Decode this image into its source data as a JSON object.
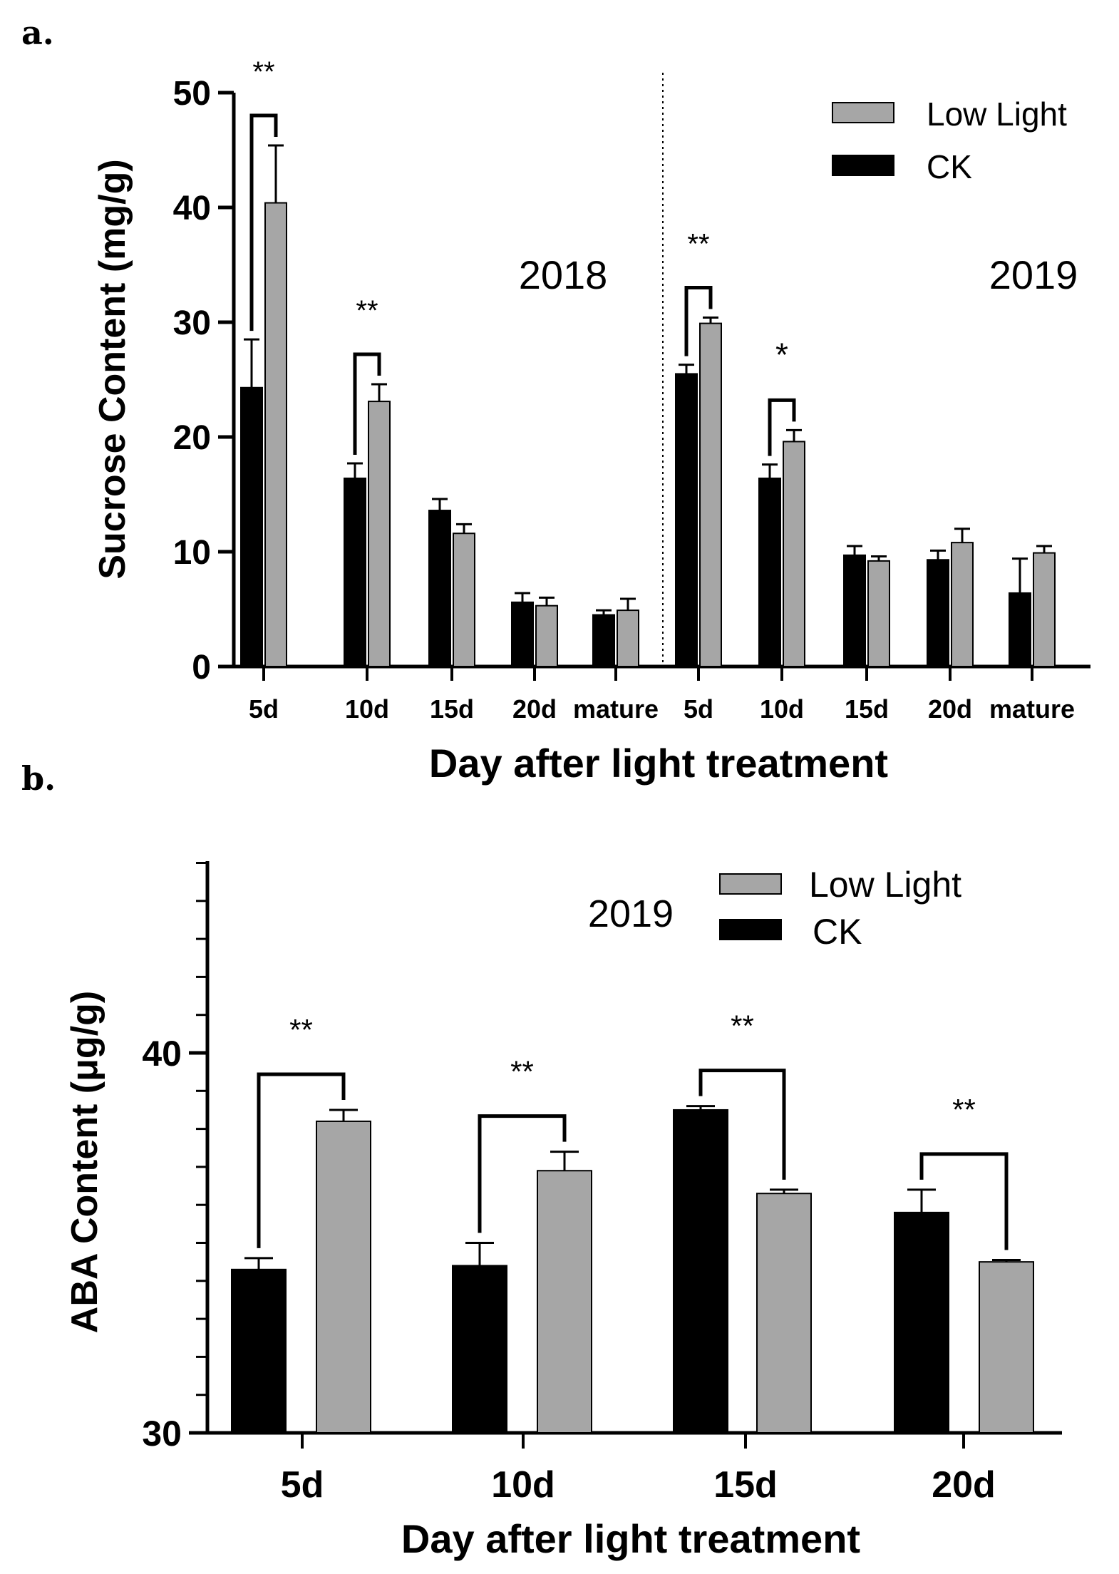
{
  "colors": {
    "ck": "#000000",
    "low_light": "#a6a6a6",
    "axis": "#000000"
  },
  "chart_data": [
    {
      "panel": "a.",
      "type": "bar",
      "ylabel": "Sucrose Content (mg/g)",
      "xlabel": "Day after light treatment",
      "ylim": [
        0,
        50
      ],
      "yticks": [
        0,
        10,
        20,
        30,
        40,
        50
      ],
      "categories": [
        "5d",
        "10d",
        "15d",
        "20d",
        "mature",
        "5d",
        "10d",
        "15d",
        "20d",
        "mature"
      ],
      "groups": [
        "2018",
        "2019"
      ],
      "series": [
        {
          "name": "CK",
          "values": [
            24.3,
            16.4,
            13.6,
            5.6,
            4.5,
            25.5,
            16.4,
            9.7,
            9.3,
            6.4
          ],
          "errors": [
            4.2,
            1.3,
            1.0,
            0.8,
            0.4,
            0.8,
            1.2,
            0.8,
            0.8,
            3.0
          ]
        },
        {
          "name": "Low Light",
          "values": [
            40.4,
            23.1,
            11.6,
            5.3,
            4.9,
            29.9,
            19.6,
            9.2,
            10.8,
            9.9
          ],
          "errors": [
            5.0,
            1.5,
            0.8,
            0.7,
            1.0,
            0.5,
            1.0,
            0.4,
            1.2,
            0.6
          ]
        }
      ],
      "legend": [
        "Low Light",
        "CK"
      ],
      "year_labels": [
        "2018",
        "2019"
      ],
      "significance": [
        {
          "category_index": 0,
          "label": "**"
        },
        {
          "category_index": 1,
          "label": "**"
        },
        {
          "category_index": 5,
          "label": "**"
        },
        {
          "category_index": 6,
          "label": "*"
        }
      ]
    },
    {
      "panel": "b.",
      "type": "bar",
      "ylabel": "ABA Content (μg/g)",
      "xlabel": "Day after light treatment",
      "ylim": [
        30,
        45
      ],
      "yticks": [
        30,
        40
      ],
      "categories": [
        "5d",
        "10d",
        "15d",
        "20d"
      ],
      "series": [
        {
          "name": "CK",
          "values": [
            34.3,
            34.4,
            38.5,
            35.8
          ],
          "errors": [
            0.3,
            0.6,
            0.1,
            0.6
          ]
        },
        {
          "name": "Low Light",
          "values": [
            38.2,
            36.9,
            36.3,
            34.5
          ],
          "errors": [
            0.3,
            0.5,
            0.1,
            0.05
          ]
        }
      ],
      "legend": [
        "Low Light",
        "CK"
      ],
      "year_label": "2019",
      "significance": [
        {
          "category_index": 0,
          "label": "**"
        },
        {
          "category_index": 1,
          "label": "**"
        },
        {
          "category_index": 2,
          "label": "**"
        },
        {
          "category_index": 3,
          "label": "**"
        }
      ]
    }
  ]
}
